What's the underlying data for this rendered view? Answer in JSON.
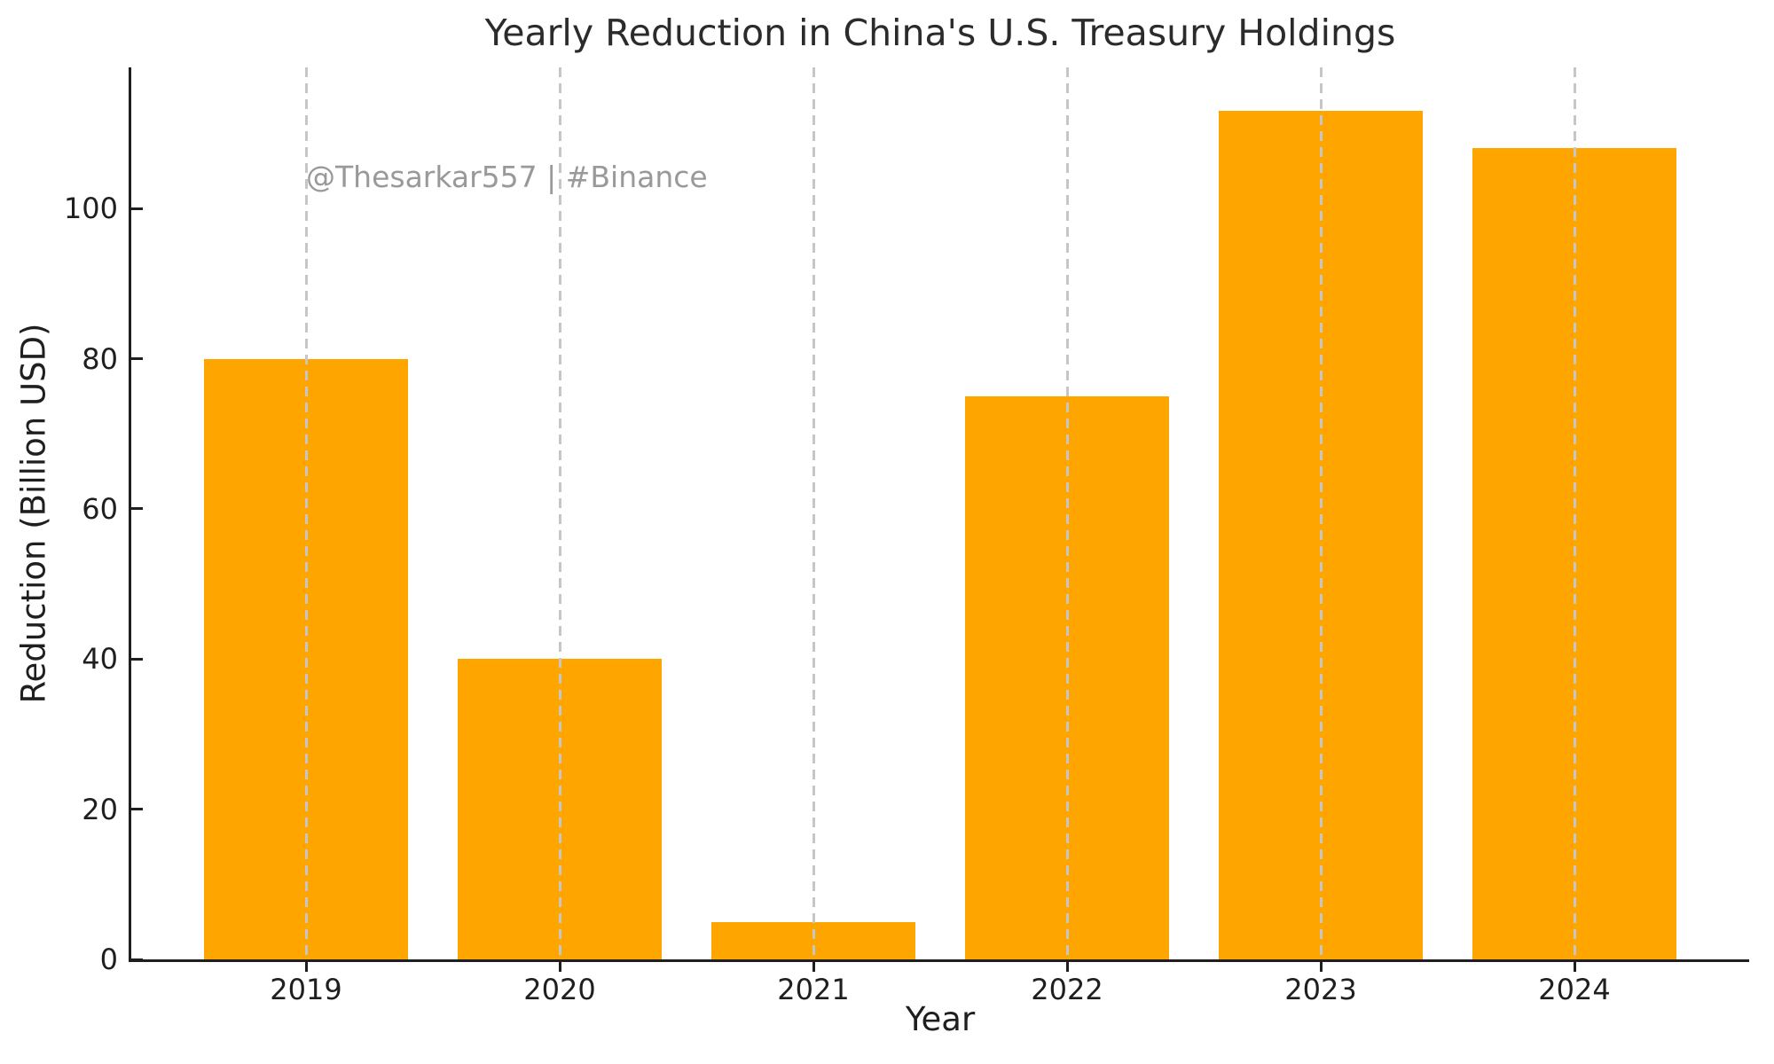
{
  "chart_data": {
    "type": "bar",
    "title": "Yearly Reduction in China's U.S. Treasury Holdings",
    "xlabel": "Year",
    "ylabel": "Reduction (Billion USD)",
    "categories": [
      "2019",
      "2020",
      "2021",
      "2022",
      "2023",
      "2024"
    ],
    "values": [
      80,
      40,
      5,
      75,
      113,
      108
    ],
    "yticks": [
      0,
      20,
      40,
      60,
      80,
      100
    ],
    "ylim": [
      0,
      118.8
    ],
    "legend": "none",
    "grid": "vertical dashed gridline at each category, drawn over bars",
    "watermark": "@Thesarkar557 | #Binance",
    "colors": {
      "bar": "#FFA500",
      "grid": "#c6c6c6",
      "axis": "#1f1f1f",
      "title_text": "#2b2b2b",
      "watermark_text": "#999999",
      "background": "#ffffff"
    }
  }
}
